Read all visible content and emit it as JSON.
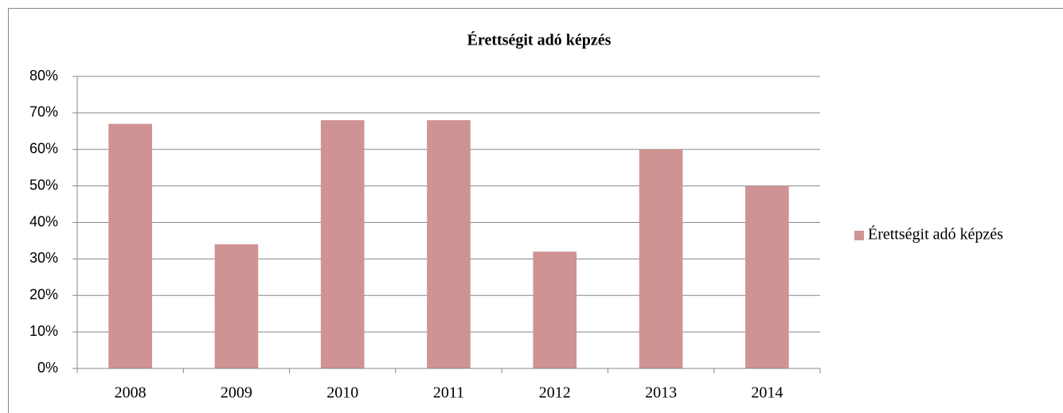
{
  "chart_data": {
    "type": "bar",
    "title": "Érettségit adó képzés",
    "categories": [
      "2008",
      "2009",
      "2010",
      "2011",
      "2012",
      "2013",
      "2014"
    ],
    "series": [
      {
        "name": "Érettségit adó képzés",
        "color": "#d09393",
        "values": [
          67,
          34,
          68,
          68,
          32,
          60,
          50
        ]
      }
    ],
    "ylim": [
      0,
      80
    ],
    "yticks": [
      {
        "value": 0,
        "label": "0%"
      },
      {
        "value": 10,
        "label": "10%"
      },
      {
        "value": 20,
        "label": "20%"
      },
      {
        "value": 30,
        "label": "30%"
      },
      {
        "value": 40,
        "label": "40%"
      },
      {
        "value": 50,
        "label": "50%"
      },
      {
        "value": 60,
        "label": "60%"
      },
      {
        "value": 70,
        "label": "70%"
      },
      {
        "value": 80,
        "label": "80%"
      }
    ],
    "grid": true,
    "legend": "right"
  }
}
